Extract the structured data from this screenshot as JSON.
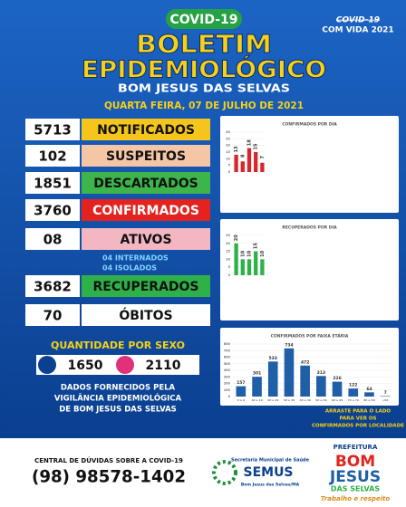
{
  "header": {
    "tag": "COVID-19",
    "title1": "BOLETIM",
    "title2": "EPIDEMIOLÓGICO",
    "place": "BOM JESUS DAS SELVAS",
    "date": "QUARTA FEIRA, 07 DE JULHO DE 2021",
    "slogan1": "COVID-19",
    "slogan2": "COM VIDA 2021"
  },
  "indicators": [
    {
      "value": "5713",
      "label": "NOTIFICADOS",
      "color": "#f6c51b"
    },
    {
      "value": "102",
      "label": "SUSPEITOS",
      "color": "#f4c6a6"
    },
    {
      "value": "1851",
      "label": "DESCARTADOS",
      "color": "#3db54a"
    },
    {
      "value": "3760",
      "label": "CONFIRMADOS",
      "color": "#e3231f"
    },
    {
      "value": "08",
      "label": "ATIVOS",
      "color": "#f3b7c4"
    },
    {
      "value": "3682",
      "label": "RECUPERADOS",
      "color": "#2fb14a"
    },
    {
      "value": "70",
      "label": "ÓBITOS",
      "color": "#ffffff"
    }
  ],
  "ativos_detail": [
    "04 INTERNADOS",
    "04 ISOLADOS"
  ],
  "sex": {
    "title": "QUANTIDADE POR SEXO",
    "male": "1650",
    "female": "2110"
  },
  "source": [
    "DADOS FORNECIDOS PELA",
    "VIGILÂNCIA EPIDEMIOLÓGICA",
    "DE BOM JESUS DAS SELVAS"
  ],
  "chart_data": [
    {
      "type": "bar",
      "title": "CONFIRMADOS POR DIA",
      "categories": [
        null,
        null,
        null,
        null,
        null
      ],
      "values": [
        13,
        8,
        18,
        15,
        7
      ],
      "color": "#d8262b",
      "ylim": [
        0,
        30
      ],
      "yticks": [
        0,
        5,
        10,
        15,
        20,
        25,
        30
      ]
    },
    {
      "type": "bar",
      "title": "RECUPERADOS POR DIA",
      "categories": [
        null,
        null,
        null,
        null,
        null
      ],
      "values": [
        20,
        10,
        10,
        15,
        10
      ],
      "color": "#2fb14a",
      "ylim": [
        0,
        25
      ],
      "yticks": [
        0,
        5,
        10,
        15,
        20,
        25
      ]
    },
    {
      "type": "bar",
      "title": "CONFIRMADOS POR FAIXA ETÁRIA",
      "categories": [
        "0 a 9",
        "10 a 19",
        "20 a 29",
        "30 a 39",
        "40 a 49",
        "50 a 59",
        "60 a 69",
        "70 a 79",
        "80 a 89",
        "+90"
      ],
      "values": [
        157,
        301,
        533,
        734,
        472,
        313,
        226,
        122,
        64,
        7
      ],
      "color": "#1f5fa8",
      "ylim": [
        0,
        800
      ],
      "yticks": [
        0,
        100,
        200,
        300,
        400,
        500,
        600,
        700,
        800
      ]
    }
  ],
  "note": [
    "ARRASTE PARA O LADO",
    "PARA VER OS",
    "CONFIRMADOS POR LOCALIDADE"
  ],
  "footer": {
    "help": "CENTRAL DE DÚVIDAS SOBRE A COVID-19",
    "phone": "(98) 98578-1402",
    "semus_top": "Secretaria Municipal de Saúde",
    "semus": "SEMUS",
    "semus_bottom": "Bom Jesus das Selvas/MA",
    "pref": "PREFEITURA",
    "bom": "BOM",
    "jesus": "JESUS",
    "das": "DAS SELVAS",
    "slogan": "Trabalho e respeito"
  }
}
